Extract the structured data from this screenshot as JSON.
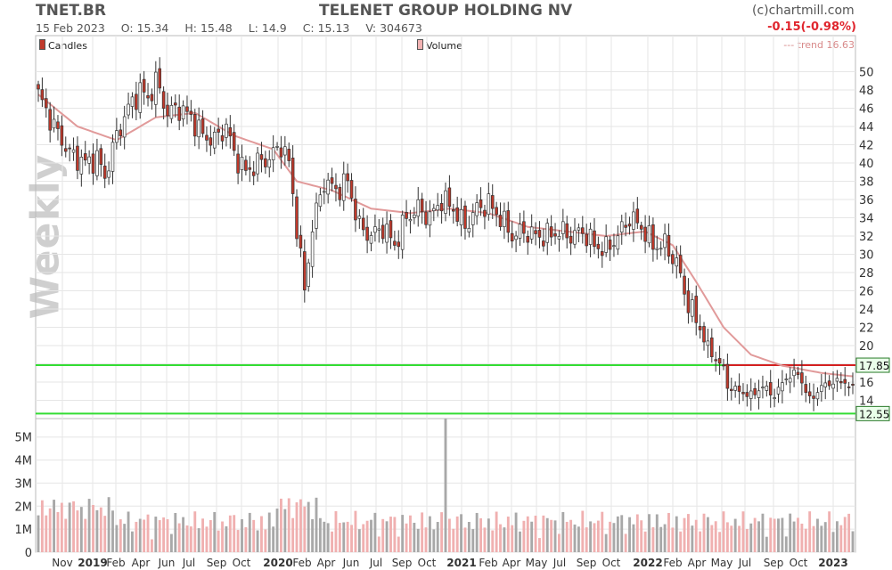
{
  "header": {
    "ticker": "TNET.BR",
    "company": "TELENET GROUP HOLDING NV",
    "credit": "(c)chartmill.com",
    "date": "15 Feb 2023",
    "open": "O: 15.34",
    "high": "H: 15.48",
    "low": "L: 14.9",
    "close": "C: 15.13",
    "volume": "V: 304673",
    "change": "-0.15(-0.98%)",
    "trend": "--- trend 16.63"
  },
  "legend": {
    "candles": "Candles",
    "volume": "Volume"
  },
  "watermark": "Weekly",
  "colors": {
    "up": "#ffffff",
    "down": "#c0392b",
    "ma": "#e19a9a",
    "ma_below": "#90e090",
    "support": "#33dd33",
    "resistance": "#d42020",
    "grid": "#e6e6e6",
    "vol_up": "#a8a8a8",
    "vol_down": "#f0b0b0"
  },
  "chart_data": {
    "type": "candlestick",
    "title": "TELENET GROUP HOLDING NV",
    "price_ticks": [
      "50",
      "48",
      "46",
      "44",
      "42",
      "40",
      "38",
      "36",
      "34",
      "32",
      "30",
      "28",
      "26",
      "24",
      "22",
      "20",
      "18",
      "16",
      "14"
    ],
    "price_range": [
      12.0,
      52.0
    ],
    "volume_ticks": [
      "5M",
      "4M",
      "3M",
      "2M",
      "1M",
      "0"
    ],
    "volume_range": [
      0,
      5800000
    ],
    "x_labels": [
      "Nov",
      "2019",
      "Feb",
      "Apr",
      "Jun",
      "Jul",
      "Sep",
      "Oct",
      "2020",
      "Feb",
      "Apr",
      "Jun",
      "Jul",
      "Sep",
      "Oct",
      "2021",
      "Feb",
      "Apr",
      "May",
      "Jul",
      "Sep",
      "Oct",
      "2022",
      "Feb",
      "Apr",
      "May",
      "Jul",
      "Sep",
      "Oct",
      "2023"
    ],
    "bold_x_labels": [
      "2019",
      "2020",
      "2021",
      "2022",
      "2023"
    ],
    "levels": [
      {
        "label": "17.85",
        "value": 17.85,
        "kind": "resistance"
      },
      {
        "label": "12.55",
        "value": 12.55,
        "kind": "support"
      }
    ],
    "anchors_week_close": [
      [
        0,
        47.5
      ],
      [
        4,
        44
      ],
      [
        8,
        41
      ],
      [
        12,
        40
      ],
      [
        15,
        40.5
      ],
      [
        17,
        38.5
      ],
      [
        20,
        43
      ],
      [
        23,
        46
      ],
      [
        26,
        48
      ],
      [
        28,
        47
      ],
      [
        30,
        49
      ],
      [
        33,
        45.5
      ],
      [
        36,
        46
      ],
      [
        39,
        45
      ],
      [
        42,
        43
      ],
      [
        45,
        42.5
      ],
      [
        48,
        44
      ],
      [
        50,
        41
      ],
      [
        53,
        39
      ],
      [
        56,
        40
      ],
      [
        59,
        40.5
      ],
      [
        62,
        42
      ],
      [
        64,
        40
      ],
      [
        66,
        33
      ],
      [
        68,
        26
      ],
      [
        70,
        33
      ],
      [
        73,
        38
      ],
      [
        76,
        37
      ],
      [
        79,
        38
      ],
      [
        82,
        33
      ],
      [
        85,
        32
      ],
      [
        88,
        33
      ],
      [
        91,
        31
      ],
      [
        94,
        34
      ],
      [
        97,
        35
      ],
      [
        100,
        34
      ],
      [
        103,
        36
      ],
      [
        106,
        35
      ],
      [
        109,
        33
      ],
      [
        112,
        35
      ],
      [
        115,
        35.5
      ],
      [
        118,
        34
      ],
      [
        121,
        32
      ],
      [
        124,
        32.5
      ],
      [
        127,
        32
      ],
      [
        130,
        32
      ],
      [
        133,
        32.5
      ],
      [
        136,
        32
      ],
      [
        139,
        32.5
      ],
      [
        142,
        31
      ],
      [
        145,
        30.5
      ],
      [
        148,
        32
      ],
      [
        151,
        34
      ],
      [
        154,
        33
      ],
      [
        157,
        31
      ],
      [
        160,
        31
      ],
      [
        163,
        29
      ],
      [
        166,
        24.5
      ],
      [
        169,
        22
      ],
      [
        172,
        19
      ],
      [
        175,
        17.5
      ],
      [
        176,
        15.5
      ],
      [
        179,
        15
      ],
      [
        182,
        14.5
      ],
      [
        185,
        15.5
      ],
      [
        188,
        14.5
      ],
      [
        191,
        16.5
      ],
      [
        194,
        17
      ],
      [
        197,
        14
      ],
      [
        200,
        15.5
      ],
      [
        203,
        16
      ],
      [
        206,
        16
      ],
      [
        208,
        15.13
      ]
    ],
    "moving_average_30w": [
      [
        0,
        47.5
      ],
      [
        10,
        44
      ],
      [
        20,
        42.5
      ],
      [
        30,
        45
      ],
      [
        40,
        45.5
      ],
      [
        50,
        43
      ],
      [
        60,
        41.5
      ],
      [
        66,
        38
      ],
      [
        75,
        37
      ],
      [
        85,
        35
      ],
      [
        95,
        34.5
      ],
      [
        105,
        35
      ],
      [
        115,
        34.5
      ],
      [
        125,
        33
      ],
      [
        135,
        32.5
      ],
      [
        145,
        32
      ],
      [
        155,
        32.5
      ],
      [
        162,
        31
      ],
      [
        168,
        27
      ],
      [
        175,
        22
      ],
      [
        182,
        19
      ],
      [
        190,
        17.8
      ],
      [
        200,
        17
      ],
      [
        208,
        16.63
      ]
    ],
    "volume_spike": {
      "week": 104,
      "value": 5800000
    },
    "volume_range_typical": [
      300000,
      2400000
    ]
  }
}
